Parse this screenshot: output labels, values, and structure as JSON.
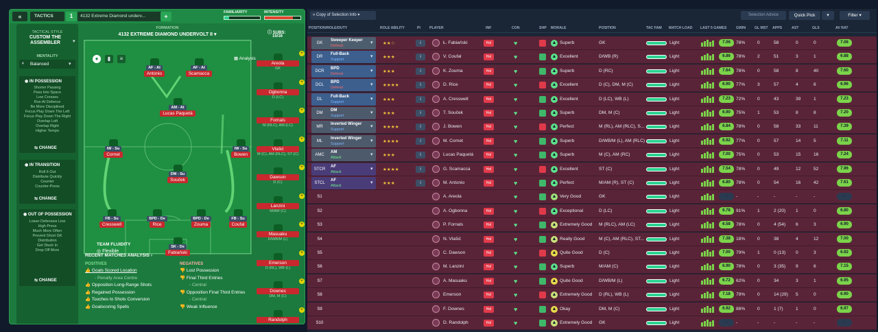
{
  "toolbar": {
    "collapse_icon": "double-chevron-left-icon",
    "tactics_label": "TACTICS",
    "slot_number": "1",
    "tactic_name": "4132 Extreme Diamond underv...",
    "add_label": "+",
    "familiarity_label": "FAMILIARITY",
    "intensity_label": "INTENSITY"
  },
  "tactical_style": {
    "heading": "TACTICAL STYLE",
    "name_line1": "CUSTOM THE",
    "name_line2": "ASSEMBLER",
    "mentality_label": "MENTALITY",
    "mentality_value": "Balanced",
    "in_possession": {
      "title": "IN POSSESSION",
      "items": [
        "Shorter Passing",
        "Pass Into Space",
        "Low Crosses",
        "Run At Defence",
        "Be More Disciplined",
        "Focus Play Down The Left",
        "Focus Play Down The Right",
        "Overlap Left",
        "Overlap Right",
        "Higher Tempo"
      ],
      "change": "CHANGE"
    },
    "in_transition": {
      "title": "IN TRANSITION",
      "items": [
        "Roll It Out",
        "Distribute Quickly",
        "Counter",
        "Counter-Press"
      ],
      "change": "CHANGE"
    },
    "out_of_possession": {
      "title": "OUT OF POSSESSION",
      "items": [
        "Lower Defensive Line",
        "High Press",
        "Much More Often",
        "Prevent Short GK",
        "Distribution",
        "Get Stuck In",
        "Drop Off More"
      ],
      "change": "CHANGE"
    }
  },
  "formation": {
    "label": "FORMATION",
    "name": "4132 EXTREME DIAMOND UNDERVOLT II",
    "analysis": "Analysis",
    "subs_label": "SUBS:",
    "subs_count": "15/16",
    "fluidity_label": "TEAM FLUIDITY",
    "fluidity_value": "Flexible"
  },
  "pitch_players": [
    {
      "role": "AF - At",
      "name": "Antonio"
    },
    {
      "role": "AF - At",
      "name": "Scamacca"
    },
    {
      "role": "AM - At",
      "name": "Lucas Paquetá"
    },
    {
      "role": "IW - Su",
      "name": "Cornet"
    },
    {
      "role": "IW - Su",
      "name": "Bowen"
    },
    {
      "role": "DM - Su",
      "name": "Souček"
    },
    {
      "role": "FB - Su",
      "name": "Cresswell"
    },
    {
      "role": "BPD - De",
      "name": "Rice"
    },
    {
      "role": "BPD - De",
      "name": "Zouma"
    },
    {
      "role": "FB - Su",
      "name": "Coufal"
    },
    {
      "role": "SK - De",
      "name": "Fabiański"
    }
  ],
  "subs_list": [
    {
      "name": "Areola",
      "pos": "GK"
    },
    {
      "name": "Ogbonna",
      "pos": "D (LC)"
    },
    {
      "name": "Fornals",
      "pos": "M (RLC), AM (LC)"
    },
    {
      "name": "Vlašić",
      "pos": "M (C), AM (RLC), ST (C)"
    },
    {
      "name": "Dawson",
      "pos": "D (C)"
    },
    {
      "name": "Lanzini",
      "pos": "M/AM (C)"
    },
    {
      "name": "Masuaku",
      "pos": "D/WB/M (L)"
    },
    {
      "name": "Emerson",
      "pos": "D (RL), WB (L)"
    },
    {
      "name": "Downes",
      "pos": "DM, M (C)"
    },
    {
      "name": "Randolph",
      "pos": ""
    }
  ],
  "analysis": {
    "title": "RECENT MATCHES ANALYSIS",
    "positives_label": "POSITIVES",
    "positives": [
      "Goals Scored Location",
      "- Penalty Area Centre",
      "Opposition Long-Range Shots",
      "Regained Possession",
      "Touches to Shots Conversion",
      "Goalscoring Spells"
    ],
    "negatives_label": "NEGATIVES",
    "negatives": [
      "Lost Possession",
      "Final Third Entries",
      "- Central",
      "Opposition Final Third Entries",
      "- Central",
      "Weak Influence"
    ]
  },
  "right_toolbar": {
    "view_label": "Copy of Selection Info",
    "selection_advice": "Selection Advice",
    "quick_pick": "Quick Pick",
    "filter": "Filter"
  },
  "columns": [
    "POSITION/ROLE/DUTY",
    "ROLE ABILITY",
    "PI",
    "PLAYER",
    "INF",
    "CON",
    "SHP",
    "MORALE",
    "POSITION",
    "TAC FAM",
    "MATCH LOAD",
    "LAST 5 GAMES",
    "GWIN",
    "GL MST",
    "APPS",
    "AST",
    "GLS",
    "AV RAT"
  ],
  "colors": {
    "gk": "#4c5d6e",
    "def": "#3c5f8e",
    "mid": "#4d5a6c",
    "att": "#4a3c78",
    "row": "#5a2438",
    "accent_green": "#5de08a"
  },
  "rows": [
    {
      "pos": "GK",
      "role": "Sweeper Keeper",
      "duty": "Defend",
      "stars": "★★☆",
      "player": "Ł. Fabiański",
      "inf": "Hol",
      "morale": "Superb",
      "position": "GK",
      "load": "Light",
      "rating": "7.06",
      "gwin": "78%",
      "glmst": "0",
      "apps": "58",
      "ast": "0",
      "gls": "0",
      "avrat": "7.06"
    },
    {
      "pos": "DR",
      "role": "Full-Back",
      "duty": "Support",
      "stars": "★★★",
      "player": "V. Coufal",
      "inf": "Hol",
      "morale": "Excellent",
      "position": "D/WB (R)",
      "load": "Light",
      "rating": "6.86",
      "gwin": "78%",
      "glmst": "2",
      "apps": "51",
      "ast": "3",
      "gls": "1",
      "avrat": "6.88"
    },
    {
      "pos": "DCR",
      "role": "BPD",
      "duty": "Defend",
      "stars": "★★★",
      "player": "K. Zouma",
      "inf": "Hol",
      "morale": "Superb",
      "position": "D (RC)",
      "load": "Light",
      "rating": "7.64",
      "gwin": "78%",
      "glmst": "0",
      "apps": "58",
      "ast": "8",
      "gls": "40",
      "avrat": "7.60"
    },
    {
      "pos": "DCL",
      "role": "BPD",
      "duty": "Defend",
      "stars": "★★★★",
      "player": "D. Rice",
      "inf": "Hol",
      "morale": "Excellent",
      "position": "D (C), DM, M (C)",
      "load": "Light",
      "rating": "6.90",
      "gwin": "77%",
      "glmst": "3",
      "apps": "57",
      "ast": "4",
      "gls": "6",
      "avrat": "6.96"
    },
    {
      "pos": "DL",
      "role": "Full-Back",
      "duty": "Support",
      "stars": "★★★",
      "player": "A. Cresswell",
      "inf": "Hol",
      "morale": "Excellent",
      "position": "D (LC), WB (L)",
      "load": "Light",
      "rating": "7.23",
      "gwin": "72%",
      "glmst": "0",
      "apps": "43",
      "ast": "39",
      "gls": "1",
      "avrat": "7.23"
    },
    {
      "pos": "DM",
      "role": "DM",
      "duty": "Support",
      "stars": "★★★",
      "player": "T. Souček",
      "inf": "Hol",
      "morale": "Superb",
      "position": "DM, M (C)",
      "load": "Light",
      "rating": "6.90",
      "gwin": "75%",
      "glmst": "1",
      "apps": "53",
      "ast": "8",
      "gls": "8",
      "avrat": "7.20"
    },
    {
      "pos": "MR",
      "role": "Inverted Winger",
      "duty": "Support",
      "stars": "★★★★",
      "player": "J. Bowen",
      "inf": "Hol",
      "morale": "Perfect",
      "position": "M (RL), AM (RLC), S...",
      "load": "Light",
      "rating": "6.84",
      "gwin": "78%",
      "glmst": "0",
      "apps": "58",
      "ast": "33",
      "gls": "11",
      "avrat": "7.39"
    },
    {
      "pos": "ML",
      "role": "Inverted Winger",
      "duty": "Support",
      "stars": "★★★★",
      "player": "M. Cornet",
      "inf": "Hol",
      "morale": "Superb",
      "position": "D/WB/M (L), AM (RLC)",
      "load": "Light",
      "rating": "6.92",
      "gwin": "77%",
      "glmst": "0",
      "apps": "57",
      "ast": "14",
      "gls": "5",
      "avrat": "7.11"
    },
    {
      "pos": "AMC",
      "role": "AM",
      "duty": "Attack",
      "stars": "★★★",
      "player": "Lucas Paquetá",
      "inf": "Hol",
      "morale": "Superb",
      "position": "M (C), AM (RC)",
      "load": "Light",
      "rating": "7.00",
      "gwin": "75%",
      "glmst": "0",
      "apps": "53",
      "ast": "15",
      "gls": "16",
      "avrat": "7.24"
    },
    {
      "pos": "STCR",
      "role": "AF",
      "duty": "Attack",
      "stars": "★★★★",
      "player": "G. Scamacca",
      "inf": "Hol",
      "morale": "Excellent",
      "position": "ST (C)",
      "load": "Light",
      "rating": "7.54",
      "gwin": "78%",
      "glmst": "0",
      "apps": "49",
      "ast": "12",
      "gls": "52",
      "avrat": "7.96"
    },
    {
      "pos": "STCL",
      "role": "AF",
      "duty": "Attack",
      "stars": "★★★",
      "player": "M. Antonio",
      "inf": "Hol",
      "morale": "Perfect",
      "position": "M/AM (R), ST (C)",
      "load": "Light",
      "rating": "6.80",
      "gwin": "78%",
      "glmst": "0",
      "apps": "54",
      "ast": "16",
      "gls": "42",
      "avrat": "7.61"
    },
    {
      "pos": "S1",
      "role": "",
      "duty": "",
      "stars": "",
      "player": "A. Areola",
      "inf": "",
      "morale": "Very Good",
      "position": "GK",
      "load": "Light",
      "rating": "-",
      "gwin": "-",
      "glmst": "-",
      "apps": "-",
      "ast": "-",
      "gls": "-",
      "avrat": "-"
    },
    {
      "pos": "S2",
      "role": "",
      "duty": "",
      "stars": "",
      "player": "A. Ogbonna",
      "inf": "Hol",
      "morale": "Exceptional",
      "position": "D (LC)",
      "load": "Light",
      "rating": "6.78",
      "gwin": "91%",
      "glmst": "1",
      "apps": "2 (20)",
      "ast": "1",
      "gls": "0",
      "avrat": "6.80"
    },
    {
      "pos": "S3",
      "role": "",
      "duty": "",
      "stars": "",
      "player": "P. Fornals",
      "inf": "Hol",
      "morale": "Extremely Good",
      "position": "M (RLC), AM (LC)",
      "load": "Light",
      "rating": "6.58",
      "gwin": "78%",
      "glmst": "0",
      "apps": "4 (54)",
      "ast": "6",
      "gls": "3",
      "avrat": "6.90"
    },
    {
      "pos": "S4",
      "role": "",
      "duty": "",
      "stars": "",
      "player": "N. Vlašić",
      "inf": "Hol",
      "morale": "Really Good",
      "position": "M (C), AM (RLC), ST...",
      "load": "Light",
      "rating": "7.38",
      "gwin": "18%",
      "glmst": "0",
      "apps": "38",
      "ast": "4",
      "gls": "12",
      "avrat": "7.00"
    },
    {
      "pos": "S5",
      "role": "",
      "duty": "",
      "stars": "",
      "player": "C. Dawson",
      "inf": "Hol",
      "morale": "Quite Good",
      "position": "D (C)",
      "load": "Light",
      "rating": "7.00",
      "gwin": "79%",
      "glmst": "1",
      "apps": "0 (13)",
      "ast": "0",
      "gls": "3",
      "avrat": "6.92"
    },
    {
      "pos": "S6",
      "role": "",
      "duty": "",
      "stars": "",
      "player": "M. Lanzini",
      "inf": "Hol",
      "morale": "Superb",
      "position": "M/AM (C)",
      "load": "Light",
      "rating": "6.90",
      "gwin": "78%",
      "glmst": "0",
      "apps": "3 (35)",
      "ast": "9",
      "gls": "6",
      "avrat": "7.15"
    },
    {
      "pos": "S7",
      "role": "",
      "duty": "",
      "stars": "",
      "player": "A. Masuaku",
      "inf": "Hol",
      "morale": "Quite Good",
      "position": "D/WB/M (L)",
      "load": "Light",
      "rating": "6.72",
      "gwin": "62%",
      "glmst": "0",
      "apps": "34",
      "ast": "3",
      "gls": "1",
      "avrat": "6.95"
    },
    {
      "pos": "S8",
      "role": "",
      "duty": "",
      "stars": "",
      "player": "Emerson",
      "inf": "Hol",
      "morale": "Extremely Good",
      "position": "D (RL), WB (L)",
      "load": "Light",
      "rating": "7.18",
      "gwin": "79%",
      "glmst": "0",
      "apps": "14 (29)",
      "ast": "5",
      "gls": "0",
      "avrat": "6.90"
    },
    {
      "pos": "S9",
      "role": "",
      "duty": "",
      "stars": "",
      "player": "F. Downes",
      "inf": "Hol",
      "morale": "Okay",
      "position": "DM, M (C)",
      "load": "Light",
      "rating": "6.92",
      "gwin": "88%",
      "glmst": "0",
      "apps": "1 (7)",
      "ast": "1",
      "gls": "0",
      "avrat": "6.97"
    },
    {
      "pos": "S10",
      "role": "",
      "duty": "",
      "stars": "",
      "player": "D. Randolph",
      "inf": "Hol",
      "morale": "Extremely Good",
      "position": "GK",
      "load": "Light",
      "rating": "-",
      "gwin": "-",
      "glmst": "-",
      "apps": "-",
      "ast": "-",
      "gls": "-",
      "avrat": "-"
    }
  ]
}
